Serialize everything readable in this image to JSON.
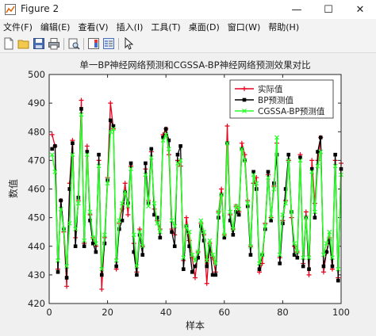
{
  "window": {
    "title": "Figure 2",
    "minimize_glyph": "—",
    "maximize_glyph": "☐",
    "close_glyph": "✕"
  },
  "menu": {
    "items": [
      {
        "label": "文件(F)"
      },
      {
        "label": "编辑(E)"
      },
      {
        "label": "查看(V)"
      },
      {
        "label": "插入(I)"
      },
      {
        "label": "工具(T)"
      },
      {
        "label": "桌面(D)"
      },
      {
        "label": "窗口(W)"
      },
      {
        "label": "帮助(H)"
      }
    ]
  },
  "toolbar": {
    "icons": [
      "new-figure-icon",
      "open-file-icon",
      "save-icon",
      "print-icon",
      "print-preview-icon",
      "colorbar-icon",
      "legend-icon",
      "pointer-icon"
    ]
  },
  "colors": {
    "actual": "#e8001b",
    "bp": "#000000",
    "cgssa": "#2bff2b"
  },
  "chart_data": {
    "type": "line",
    "title": "单一BP神经网络预测和CGSSA-BP神经网络预测效果对比",
    "xlabel": "样本",
    "ylabel": "数值",
    "xlim": [
      0,
      100
    ],
    "ylim": [
      420,
      500
    ],
    "xticks": [
      "0",
      "20",
      "40",
      "60",
      "80",
      "100"
    ],
    "yticks": [
      "420",
      "430",
      "440",
      "450",
      "460",
      "470",
      "480",
      "490",
      "500"
    ],
    "grid": false,
    "legend_position": "top-right",
    "x": [
      1,
      2,
      3,
      4,
      5,
      6,
      7,
      8,
      9,
      10,
      11,
      12,
      13,
      14,
      15,
      16,
      17,
      18,
      19,
      20,
      21,
      22,
      23,
      24,
      25,
      26,
      27,
      28,
      29,
      30,
      31,
      32,
      33,
      34,
      35,
      36,
      37,
      38,
      39,
      40,
      41,
      42,
      43,
      44,
      45,
      46,
      47,
      48,
      49,
      50,
      51,
      52,
      53,
      54,
      55,
      56,
      57,
      58,
      59,
      60,
      61,
      62,
      63,
      64,
      65,
      66,
      67,
      68,
      69,
      70,
      71,
      72,
      73,
      74,
      75,
      76,
      77,
      78,
      79,
      80,
      81,
      82,
      83,
      84,
      85,
      86,
      87,
      88,
      89,
      90,
      91,
      92,
      93,
      94,
      95,
      96,
      97,
      98,
      99,
      100
    ],
    "series": [
      {
        "name": "实际值",
        "marker": "+",
        "values": [
          479,
          475,
          432,
          456,
          445,
          426,
          462,
          477,
          443,
          456,
          491,
          441,
          475,
          451,
          443,
          440,
          470,
          425,
          443,
          464,
          490,
          481,
          432,
          448,
          453,
          462,
          451,
          468,
          441,
          431,
          446,
          440,
          467,
          456,
          473,
          453,
          449,
          446,
          479,
          481,
          472,
          446,
          444,
          470,
          468,
          435,
          450,
          442,
          436,
          429,
          438,
          448,
          444,
          427,
          441,
          436,
          431,
          452,
          460,
          444,
          482,
          451,
          446,
          454,
          452,
          476,
          472,
          456,
          440,
          462,
          464,
          431,
          434,
          448,
          465,
          450,
          461,
          476,
          436,
          449,
          456,
          470,
          450,
          440,
          438,
          472,
          434,
          452,
          430,
          470,
          455,
          470,
          478,
          431,
          438,
          443,
          432,
          470,
          429,
          469
        ]
      },
      {
        "name": "BP预测值",
        "marker": "square",
        "values": [
          474,
          475,
          431,
          456,
          446,
          429,
          460,
          476,
          440,
          457,
          488,
          440,
          473,
          449,
          441,
          438,
          472,
          430,
          441,
          463,
          484,
          482,
          433,
          446,
          449,
          459,
          455,
          469,
          438,
          430,
          444,
          437,
          469,
          455,
          474,
          451,
          450,
          443,
          478,
          481,
          477,
          445,
          440,
          472,
          475,
          432,
          447,
          440,
          431,
          433,
          436,
          447,
          442,
          433,
          440,
          430,
          430,
          450,
          458,
          443,
          476,
          449,
          444,
          452,
          451,
          474,
          470,
          454,
          437,
          466,
          460,
          432,
          437,
          446,
          466,
          449,
          462,
          472,
          434,
          448,
          460,
          472,
          452,
          437,
          436,
          471,
          433,
          450,
          432,
          467,
          450,
          473,
          478,
          433,
          438,
          442,
          433,
          472,
          428,
          467
        ]
      },
      {
        "name": "CGSSA-BP预测值",
        "marker": "x",
        "values": [
          472,
          466,
          435,
          453,
          446,
          433,
          448,
          472,
          446,
          455,
          486,
          442,
          472,
          452,
          443,
          441,
          468,
          432,
          444,
          462,
          480,
          481,
          435,
          449,
          455,
          459,
          454,
          467,
          444,
          433,
          445,
          440,
          465,
          454,
          471,
          455,
          448,
          445,
          477,
          479,
          474,
          449,
          447,
          469,
          470,
          436,
          447,
          445,
          437,
          435,
          438,
          449,
          445,
          435,
          442,
          437,
          434,
          452,
          458,
          444,
          476,
          452,
          446,
          454,
          453,
          474,
          470,
          455,
          440,
          465,
          462,
          434,
          437,
          447,
          464,
          450,
          460,
          478,
          437,
          451,
          455,
          470,
          452,
          441,
          438,
          470,
          436,
          450,
          436,
          466,
          452,
          468,
          473,
          437,
          441,
          445,
          436,
          468,
          432,
          465
        ]
      }
    ]
  }
}
